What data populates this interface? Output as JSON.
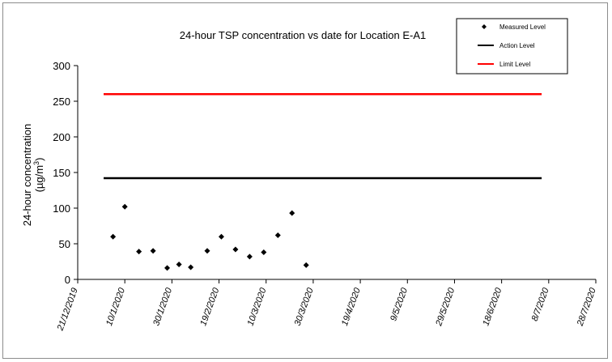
{
  "chart_data": {
    "type": "scatter",
    "title": "24-hour TSP concentration vs date for Location E-A1",
    "ylabel_line1": "24-hour concentration",
    "ylabel_line2_prefix": "(µg/m",
    "ylabel_line2_sup": "3",
    "ylabel_line2_suffix": ")",
    "ylim": [
      0,
      300
    ],
    "y_ticks": [
      0,
      50,
      100,
      150,
      200,
      250,
      300
    ],
    "x_range": [
      "2019-12-21",
      "2020-07-28"
    ],
    "x_tick_labels": [
      "21/12/2019",
      "10/1/2020",
      "30/1/2020",
      "19/2/2020",
      "10/3/2020",
      "30/3/2020",
      "19/4/2020",
      "9/5/2020",
      "29/5/2020",
      "18/6/2020",
      "8/7/2020",
      "28/7/2020"
    ],
    "grid": false,
    "legend_placement": "top-right",
    "series": [
      {
        "name": "Measured Level",
        "kind": "markers",
        "marker": "diamond",
        "color": "#000000",
        "points": [
          {
            "x": "2020-01-05",
            "y": 60
          },
          {
            "x": "2020-01-10",
            "y": 102
          },
          {
            "x": "2020-01-16",
            "y": 39
          },
          {
            "x": "2020-01-22",
            "y": 40
          },
          {
            "x": "2020-01-28",
            "y": 16
          },
          {
            "x": "2020-02-02",
            "y": 21
          },
          {
            "x": "2020-02-07",
            "y": 17
          },
          {
            "x": "2020-02-14",
            "y": 40
          },
          {
            "x": "2020-02-20",
            "y": 60
          },
          {
            "x": "2020-02-26",
            "y": 42
          },
          {
            "x": "2020-03-03",
            "y": 32
          },
          {
            "x": "2020-03-09",
            "y": 38
          },
          {
            "x": "2020-03-15",
            "y": 62
          },
          {
            "x": "2020-03-21",
            "y": 93
          },
          {
            "x": "2020-03-27",
            "y": 20
          }
        ]
      },
      {
        "name": "Action Level",
        "kind": "line",
        "color": "#000000",
        "points": [
          {
            "x": "2020-01-01",
            "y": 142
          },
          {
            "x": "2020-07-05",
            "y": 142
          }
        ]
      },
      {
        "name": "Limit Level",
        "kind": "line",
        "color": "#ff0000",
        "points": [
          {
            "x": "2020-01-01",
            "y": 260
          },
          {
            "x": "2020-07-05",
            "y": 260
          }
        ]
      }
    ]
  }
}
